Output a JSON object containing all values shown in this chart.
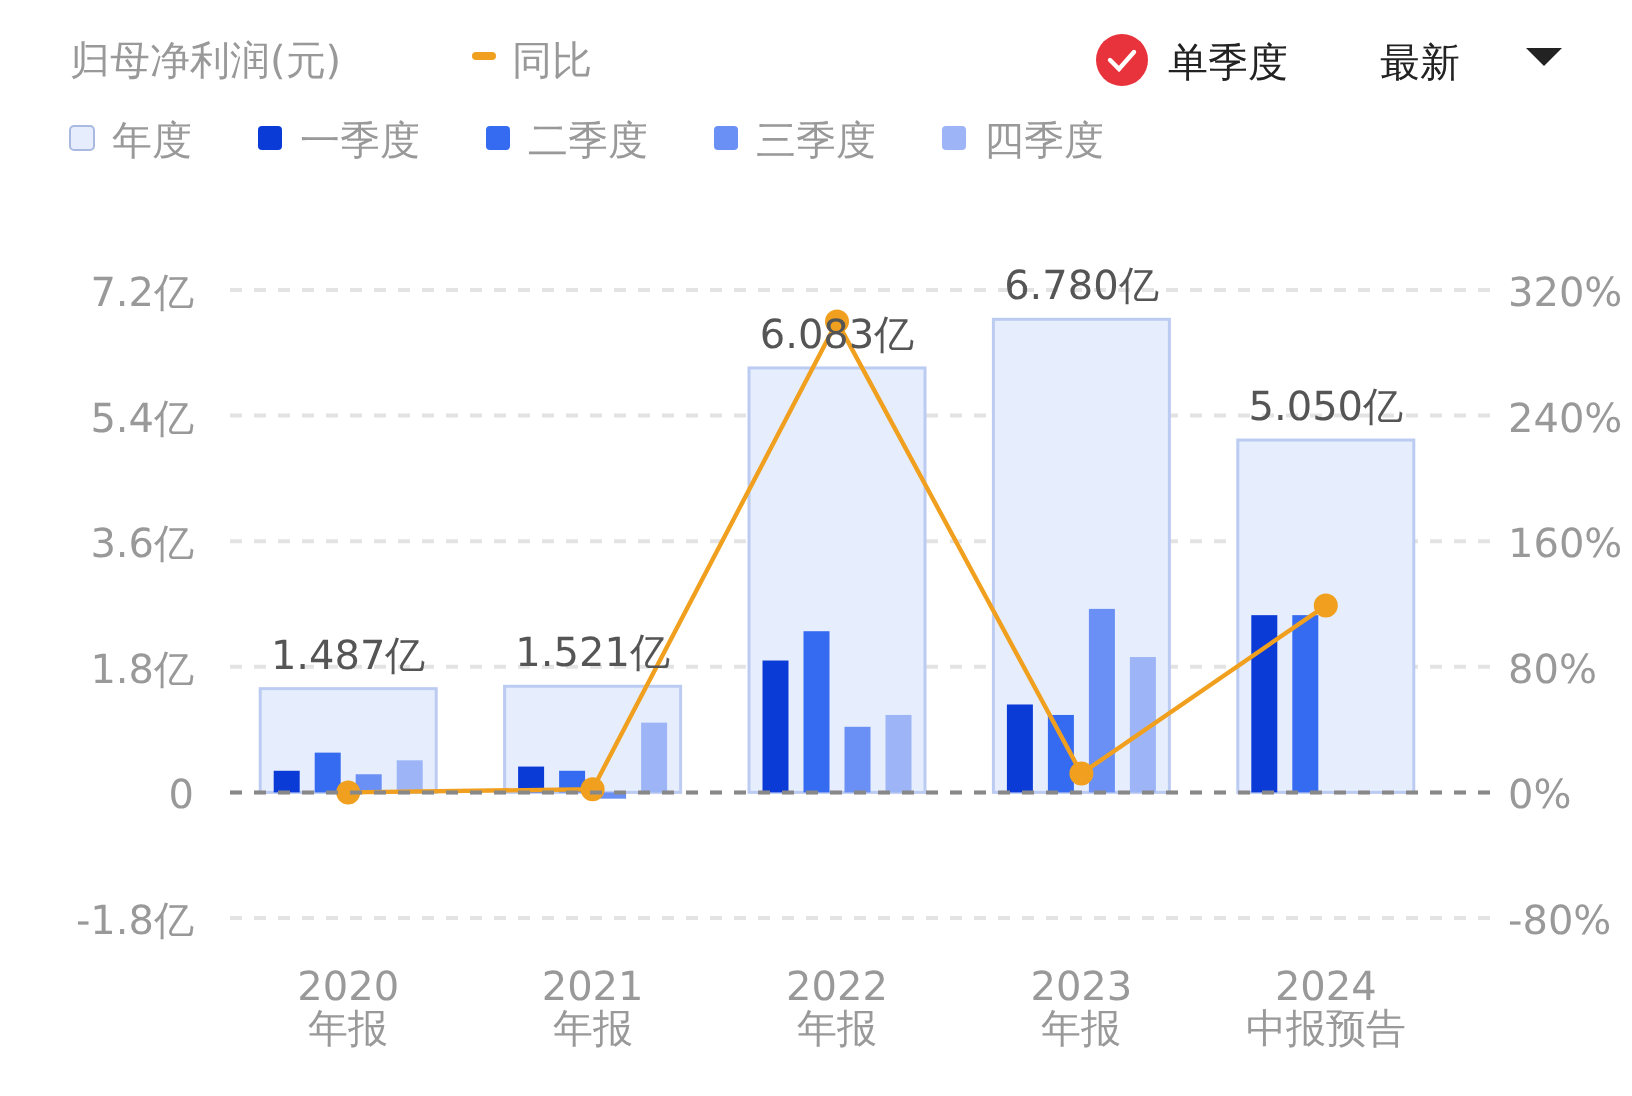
{
  "chart_data": {
    "type": "bar",
    "title": "归母净利润(元)",
    "annotations": [
      "单季度",
      "最新"
    ],
    "categories": [
      "2020\n年报",
      "2021\n年报",
      "2022\n年报",
      "2023\n年报",
      "2024\n中报预告"
    ],
    "series": [
      {
        "name": "年度",
        "color": "#e6edfd",
        "values": [
          1.487,
          1.521,
          6.083,
          6.78,
          5.05
        ],
        "value_labels": [
          "1.487亿",
          "1.521亿",
          "6.083亿",
          "6.780亿",
          "5.050亿"
        ]
      },
      {
        "name": "一季度",
        "color": "#0a3bd6",
        "values": [
          0.31,
          0.37,
          1.89,
          1.26,
          2.54
        ]
      },
      {
        "name": "二季度",
        "color": "#356bf0",
        "values": [
          0.57,
          0.31,
          2.31,
          1.11,
          2.54
        ]
      },
      {
        "name": "三季度",
        "color": "#6a90f5",
        "values": [
          0.26,
          -0.09,
          0.94,
          2.63,
          null
        ]
      },
      {
        "name": "四季度",
        "color": "#9db5f7",
        "values": [
          0.46,
          1.0,
          1.11,
          1.94,
          null
        ]
      },
      {
        "name": "同比",
        "type": "line",
        "axis": "y2",
        "color": "#f0a01e",
        "values": [
          0,
          2,
          300,
          12,
          119
        ]
      }
    ],
    "ylim": [
      -1.8,
      7.2
    ],
    "yticks": [
      {
        "value": -1.8,
        "label": "-1.8亿"
      },
      0,
      {
        "value": 1.8,
        "label": "1.8亿"
      },
      {
        "value": 3.6,
        "label": "3.6亿"
      },
      {
        "value": 5.4,
        "label": "5.4亿"
      },
      {
        "value": 7.2,
        "label": "7.2亿"
      }
    ],
    "y2lim": [
      -80,
      320
    ],
    "y2ticks": [
      {
        "value": -80,
        "label": "-80%"
      },
      {
        "value": 0,
        "label": "0%"
      },
      {
        "value": 80,
        "label": "80%"
      },
      {
        "value": 160,
        "label": "160%"
      },
      {
        "value": 240,
        "label": "240%"
      },
      {
        "value": 320,
        "label": "320%"
      }
    ],
    "ref_lines": [
      {
        "axis": "y",
        "value": 0,
        "color": "#888888",
        "line_style": "dashed"
      }
    ],
    "grid": "y",
    "legend": "top left",
    "marker": "circle"
  }
}
